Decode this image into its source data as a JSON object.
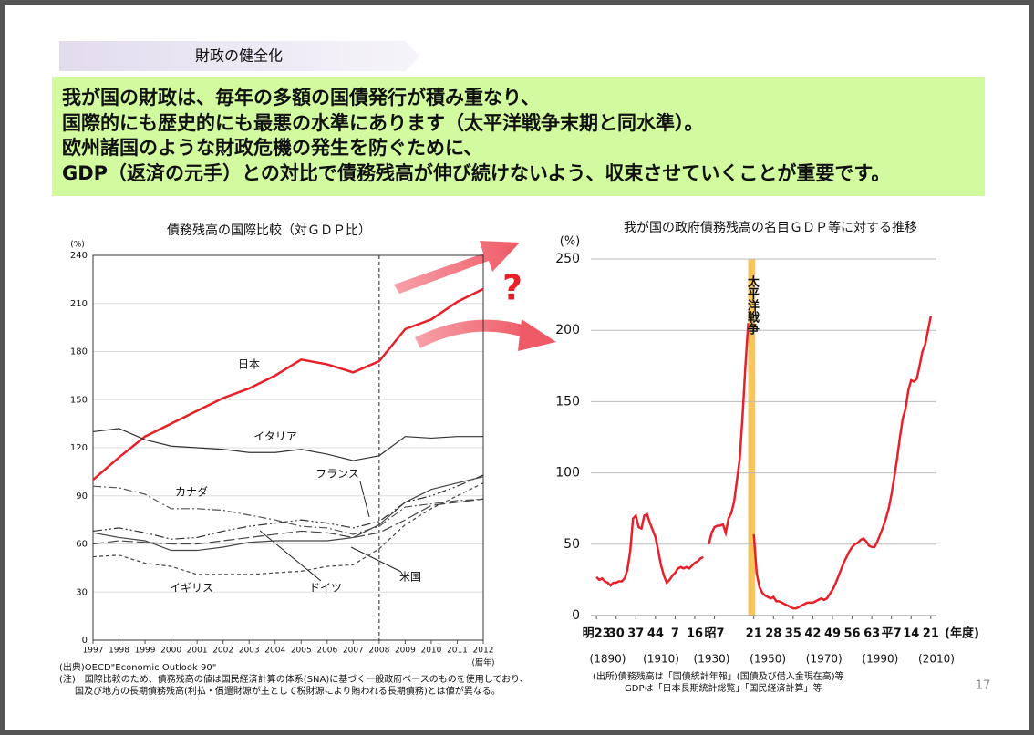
{
  "header": {
    "section": "財政の健全化",
    "message": [
      "我が国の財政は、毎年の多額の国債発行が積み重なり、",
      "国際的にも歴史的にも最悪の水準にあります（太平洋戦争末期と同水準）。",
      "欧州諸国のような財政危機の発生を防ぐために、",
      "GDP（返済の元手）との対比で債務残高が伸び続けないよう、収束させていくことが重要です。"
    ]
  },
  "chart_data": [
    {
      "type": "line",
      "title": "債務残高の国際比較（対ＧＤＰ比）",
      "y_unit": "(%)",
      "x_label": "(暦年)",
      "x": [
        1997,
        1998,
        1999,
        2000,
        2001,
        2002,
        2003,
        2004,
        2005,
        2006,
        2007,
        2008,
        2009,
        2010,
        2011,
        2012
      ],
      "xlim": [
        1997,
        2012
      ],
      "xticks": [
        1997,
        1998,
        1999,
        2000,
        2001,
        2002,
        2003,
        2004,
        2005,
        2006,
        2007,
        2008,
        2009,
        2010,
        2011,
        2012
      ],
      "ylim": [
        0,
        240
      ],
      "yticks": [
        0,
        30,
        60,
        90,
        120,
        150,
        180,
        210,
        240
      ],
      "grid": true,
      "reference_x": 2008,
      "series": [
        {
          "name": "日本",
          "color": "#e8202a",
          "dash": "solid",
          "values": [
            100,
            114,
            127,
            135,
            143,
            151,
            157,
            165,
            175,
            172,
            167,
            174,
            194,
            200,
            211,
            219
          ]
        },
        {
          "name": "イタリア",
          "color": "#333333",
          "dash": "solid",
          "values": [
            130,
            132,
            125,
            121,
            120,
            119,
            117,
            117,
            119,
            116,
            112,
            115,
            127,
            126,
            127,
            127
          ]
        },
        {
          "name": "カナダ",
          "color": "#555555",
          "dash": "dashdot",
          "values": [
            96,
            95,
            91,
            82,
            82,
            81,
            78,
            75,
            71,
            70,
            66,
            71,
            83,
            85,
            87,
            88
          ]
        },
        {
          "name": "フランス",
          "color": "#333333",
          "dash": "dashdotdot",
          "values": [
            68,
            70,
            67,
            63,
            64,
            68,
            71,
            73,
            75,
            73,
            70,
            74,
            86,
            90,
            96,
            103
          ]
        },
        {
          "name": "米国",
          "color": "#444444",
          "dash": "solid",
          "values": [
            67,
            64,
            62,
            56,
            56,
            58,
            61,
            62,
            62,
            62,
            64,
            72,
            86,
            94,
            98,
            102
          ]
        },
        {
          "name": "ドイツ",
          "color": "#444444",
          "dash": "longdash",
          "values": [
            60,
            62,
            61,
            60,
            60,
            62,
            64,
            66,
            68,
            67,
            64,
            67,
            75,
            84,
            86,
            88
          ]
        },
        {
          "name": "イギリス",
          "color": "#444444",
          "dash": "dash",
          "values": [
            52,
            53,
            48,
            46,
            41,
            41,
            41,
            42,
            43,
            46,
            47,
            57,
            72,
            82,
            90,
            98
          ]
        }
      ]
    },
    {
      "type": "line",
      "title": "我が国の政府債務残高の名目ＧＤＰ等に対する推移",
      "y_unit": "(%)",
      "x_label": "(年度)",
      "xlim": [
        1888,
        2011
      ],
      "ylim": [
        0,
        250
      ],
      "yticks": [
        0,
        50,
        100,
        150,
        200,
        250
      ],
      "grid": true,
      "xticks": [
        {
          "value": 1890,
          "label": "明23"
        },
        {
          "value": 1897,
          "label": "30"
        },
        {
          "value": 1904,
          "label": "37"
        },
        {
          "value": 1911,
          "label": "44"
        },
        {
          "value": 1918,
          "label": "7"
        },
        {
          "value": 1925,
          "label": "16"
        },
        {
          "value": 1932,
          "label": "昭7"
        },
        {
          "value": 1946,
          "label": "21"
        },
        {
          "value": 1953,
          "label": "28"
        },
        {
          "value": 1960,
          "label": "35"
        },
        {
          "value": 1967,
          "label": "42"
        },
        {
          "value": 1974,
          "label": "49"
        },
        {
          "value": 1981,
          "label": "56"
        },
        {
          "value": 1988,
          "label": "63"
        },
        {
          "value": 1995,
          "label": "平7"
        },
        {
          "value": 2002,
          "label": "14"
        },
        {
          "value": 2009,
          "label": "21"
        }
      ],
      "xticks2": [
        {
          "value": 1894,
          "label": "(1890)"
        },
        {
          "value": 1913,
          "label": "(1910)"
        },
        {
          "value": 1931,
          "label": "(1930)"
        },
        {
          "value": 1951,
          "label": "(1950)"
        },
        {
          "value": 1971,
          "label": "(1970)"
        },
        {
          "value": 1991,
          "label": "(1990)"
        },
        {
          "value": 2011,
          "label": "(2010)"
        }
      ],
      "band": {
        "from": 1944,
        "to": 1946.5,
        "label": "太平洋戦争",
        "color": "#f7c55a"
      },
      "color": "#e8202a",
      "x": [
        1890,
        1891,
        1892,
        1893,
        1894,
        1895,
        1896,
        1897,
        1898,
        1899,
        1900,
        1901,
        1902,
        1903,
        1904,
        1905,
        1906,
        1907,
        1908,
        1909,
        1910,
        1911,
        1912,
        1913,
        1914,
        1915,
        1916,
        1917,
        1918,
        1919,
        1920,
        1921,
        1922,
        1923,
        1924,
        1925,
        1926,
        1927,
        1928,
        1929,
        1930,
        1931,
        1932,
        1933,
        1934,
        1935,
        1936,
        1937,
        1938,
        1939,
        1940,
        1941,
        1942,
        1943,
        1944,
        1945,
        1946,
        1947,
        1948,
        1949,
        1950,
        1951,
        1952,
        1953,
        1954,
        1955,
        1956,
        1957,
        1958,
        1959,
        1960,
        1961,
        1962,
        1963,
        1964,
        1965,
        1966,
        1967,
        1968,
        1969,
        1970,
        1971,
        1972,
        1973,
        1974,
        1975,
        1976,
        1977,
        1978,
        1979,
        1980,
        1981,
        1982,
        1983,
        1984,
        1985,
        1986,
        1987,
        1988,
        1989,
        1990,
        1991,
        1992,
        1993,
        1994,
        1995,
        1996,
        1997,
        1998,
        1999,
        2000,
        2001,
        2002,
        2003,
        2004,
        2005,
        2006,
        2007,
        2008,
        2009
      ],
      "values": [
        27,
        25,
        26,
        24,
        23,
        21,
        23,
        23,
        24,
        24,
        26,
        32,
        45,
        68,
        70,
        62,
        61,
        70,
        71,
        65,
        60,
        55,
        45,
        35,
        28,
        23,
        25,
        28,
        30,
        33,
        34,
        33,
        34,
        33,
        35,
        37,
        38,
        40,
        41,
        null,
        50,
        58,
        62,
        63,
        63,
        64,
        58,
        68,
        72,
        80,
        95,
        110,
        140,
        175,
        205,
        null,
        57,
        30,
        20,
        16,
        14,
        13,
        12,
        13,
        10,
        10,
        9,
        8,
        7,
        6,
        5,
        5,
        6,
        7,
        8,
        9,
        9,
        9,
        10,
        11,
        12,
        11,
        12,
        15,
        18,
        22,
        27,
        32,
        37,
        41,
        45,
        48,
        50,
        51,
        53,
        54,
        52,
        49,
        48,
        48,
        52,
        57,
        62,
        68,
        75,
        85,
        97,
        110,
        125,
        138,
        145,
        158,
        165,
        164,
        166,
        175,
        185,
        190,
        200,
        210
      ]
    }
  ],
  "notes": {
    "left": [
      "(出典)OECD\"Economic Outlook 90\"",
      "(注)　国際比較のため、債務残高の値は国民経済計算の体系(SNA)に基づく一般政府ベースのものを使用しており、",
      "国及び地方の長期債務残高(利払・償還財源が主として税財源により賄われる長期債務)とは値が異なる。"
    ],
    "right": [
      "(出所)債務残高は「国債統計年報」(国債及び借入金現在高)等",
      "GDPは「日本長期統計総覧」「国民経済計算」等"
    ]
  },
  "question": "?",
  "page_number": 17
}
